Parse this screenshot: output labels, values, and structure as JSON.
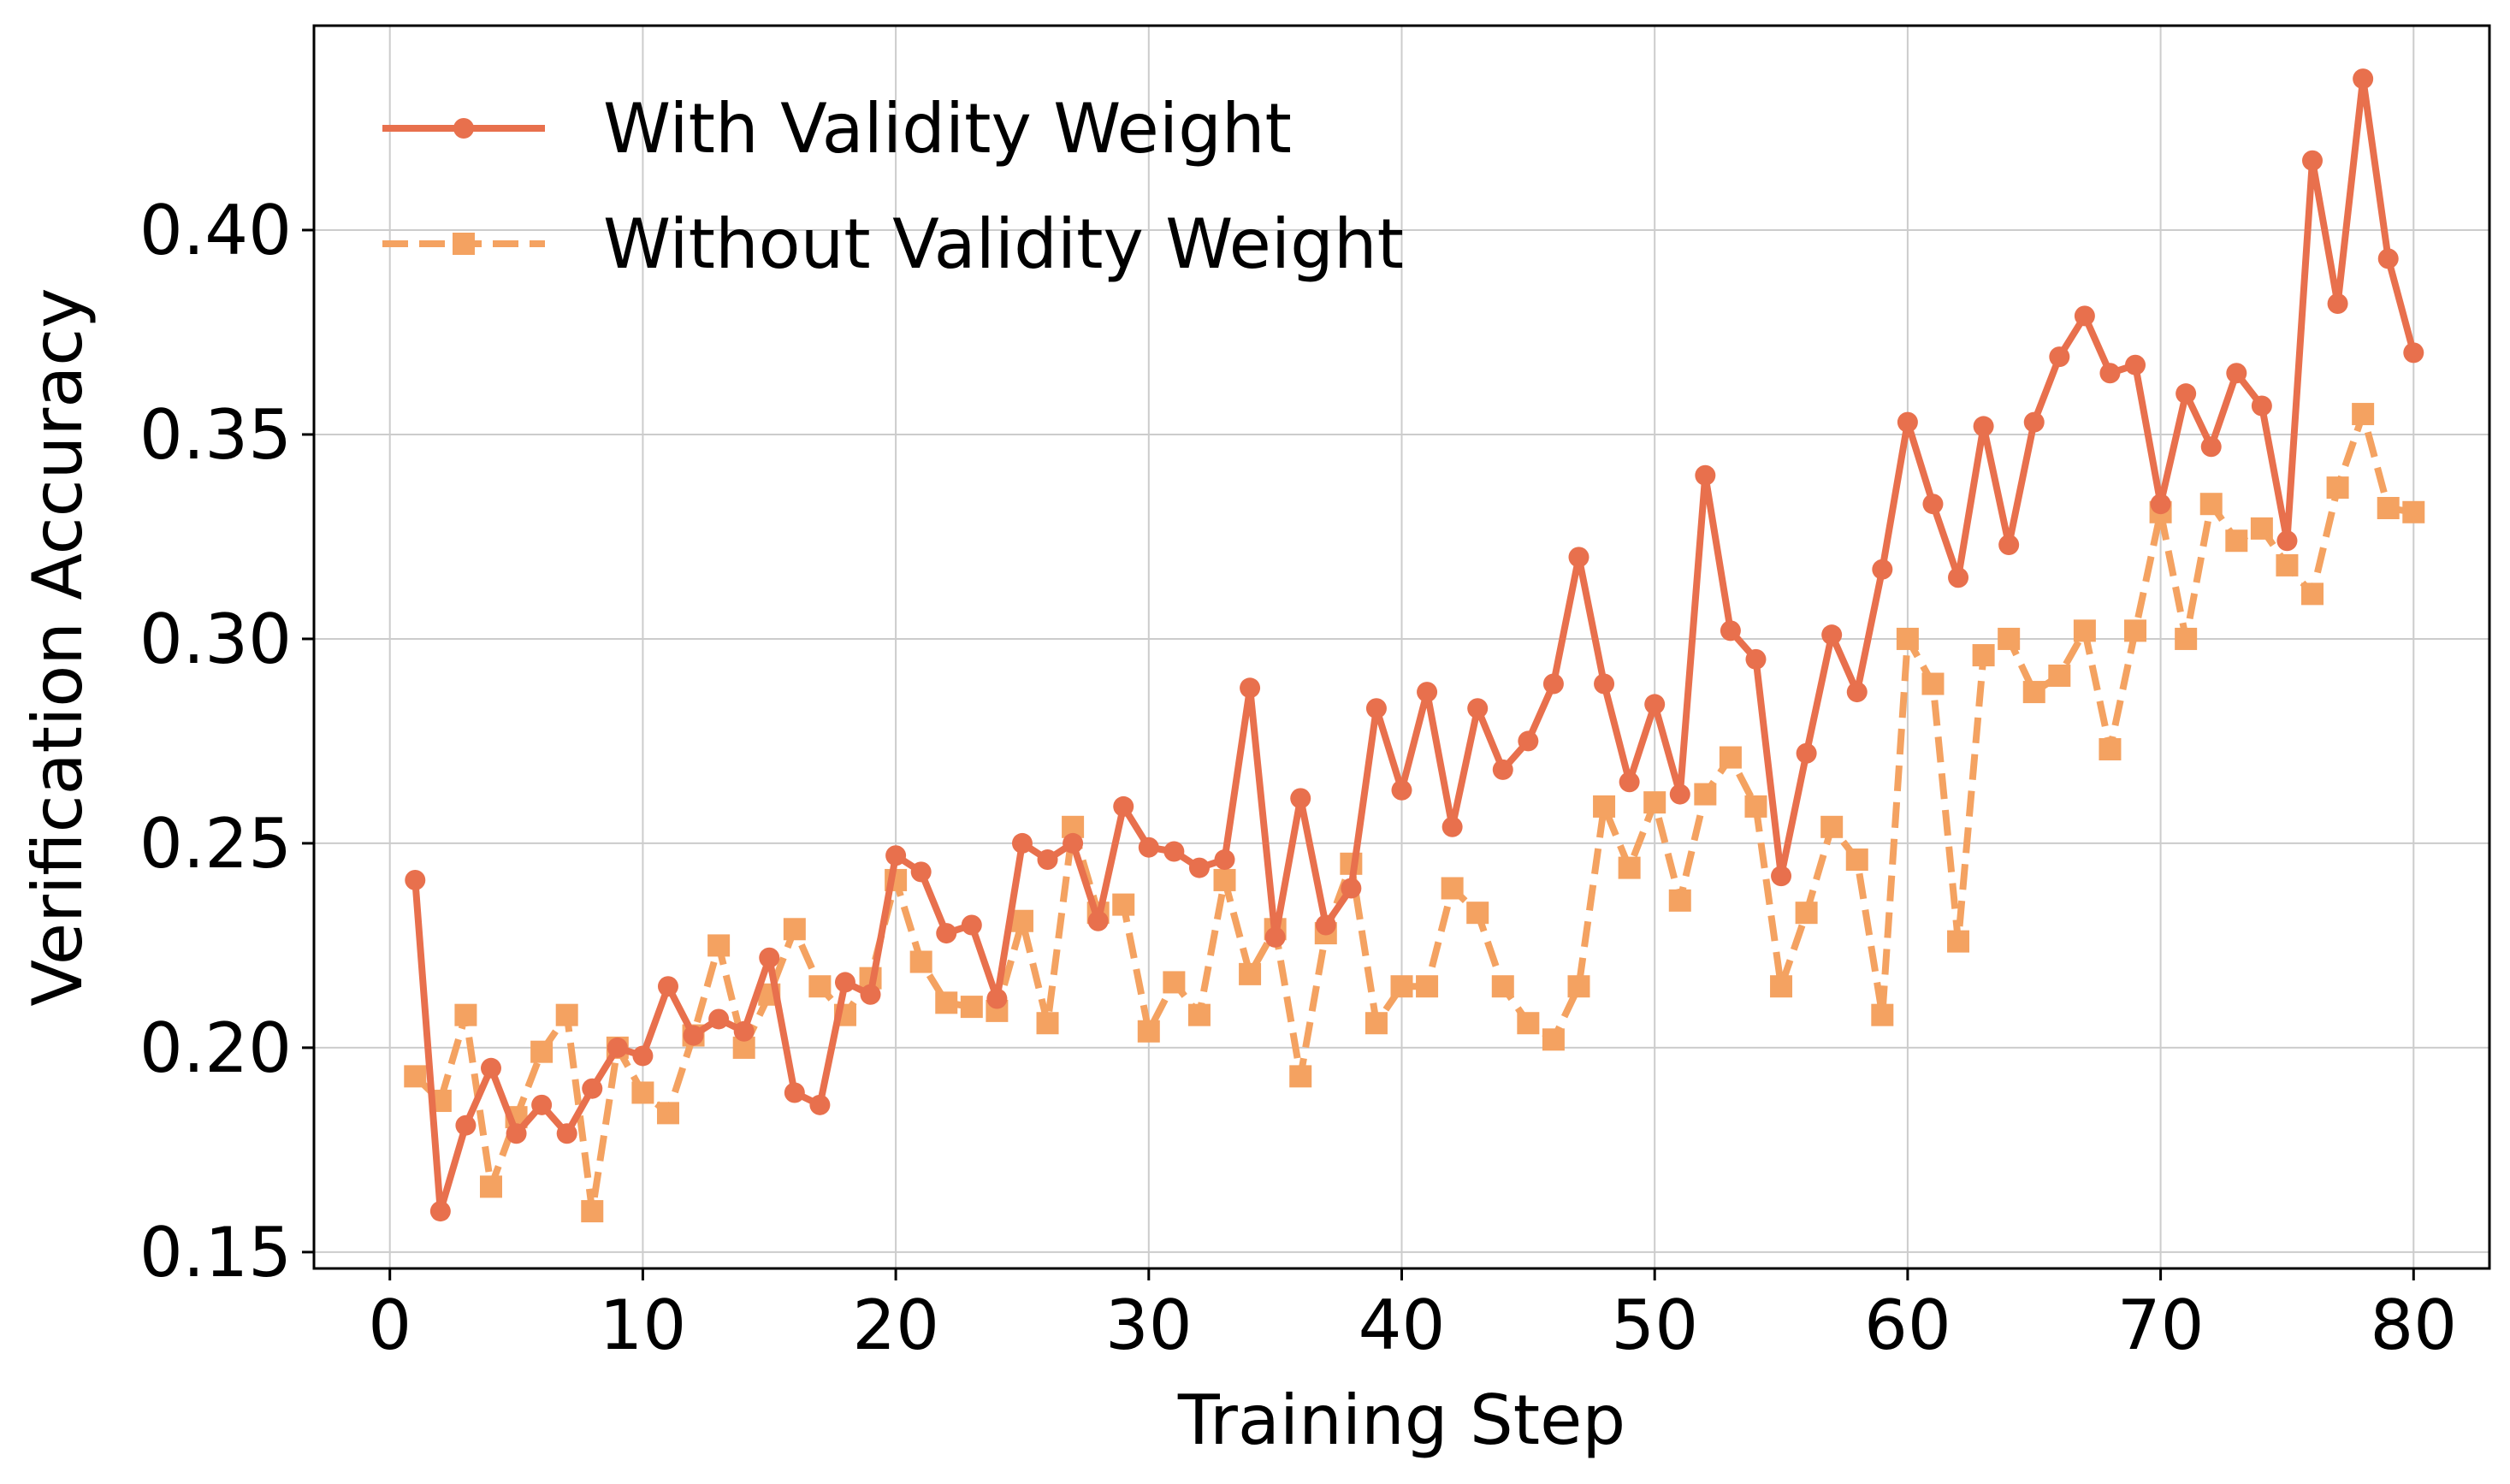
{
  "chart_data": {
    "type": "line",
    "title": "",
    "xlabel": "Training Step",
    "ylabel": "Verification Accuracy",
    "xlim": [
      -3,
      83
    ],
    "ylim": [
      0.146,
      0.45
    ],
    "xticks": [
      0,
      10,
      20,
      30,
      40,
      50,
      60,
      70,
      80
    ],
    "xtick_labels": [
      "0",
      "10",
      "20",
      "30",
      "40",
      "50",
      "60",
      "70",
      "80"
    ],
    "yticks": [
      0.15,
      0.2,
      0.25,
      0.3,
      0.35,
      0.4
    ],
    "ytick_labels": [
      "0.15",
      "0.20",
      "0.25",
      "0.30",
      "0.35",
      "0.40"
    ],
    "grid": true,
    "legend_position": "top-left",
    "x": [
      1,
      2,
      3,
      4,
      5,
      6,
      7,
      8,
      9,
      10,
      11,
      12,
      13,
      14,
      15,
      16,
      17,
      18,
      19,
      20,
      21,
      22,
      23,
      24,
      25,
      26,
      27,
      28,
      29,
      30,
      31,
      32,
      33,
      34,
      35,
      36,
      37,
      38,
      39,
      40,
      41,
      42,
      43,
      44,
      45,
      46,
      47,
      48,
      49,
      50,
      51,
      52,
      53,
      54,
      55,
      56,
      57,
      58,
      59,
      60,
      61,
      62,
      63,
      64,
      65,
      66,
      67,
      68,
      69,
      70,
      71,
      72,
      73,
      74,
      75,
      76,
      77,
      78,
      79,
      80
    ],
    "series": [
      {
        "name": "With Validity Weight",
        "color": "#e8704d",
        "line_style": "solid",
        "marker": "circle",
        "values": [
          0.241,
          0.16,
          0.181,
          0.195,
          0.179,
          0.186,
          0.179,
          0.19,
          0.2,
          0.198,
          0.215,
          0.203,
          0.207,
          0.204,
          0.222,
          0.189,
          0.186,
          0.216,
          0.213,
          0.247,
          0.243,
          0.228,
          0.23,
          0.212,
          0.25,
          0.246,
          0.25,
          0.231,
          0.259,
          0.249,
          0.248,
          0.244,
          0.246,
          0.288,
          0.227,
          0.261,
          0.23,
          0.239,
          0.283,
          0.263,
          0.287,
          0.254,
          0.283,
          0.268,
          0.275,
          0.289,
          0.32,
          0.289,
          0.265,
          0.284,
          0.262,
          0.34,
          0.302,
          0.295,
          0.242,
          0.272,
          0.301,
          0.287,
          0.317,
          0.353,
          0.333,
          0.315,
          0.352,
          0.323,
          0.353,
          0.369,
          0.379,
          0.365,
          0.367,
          0.333,
          0.36,
          0.347,
          0.365,
          0.357,
          0.324,
          0.417,
          0.382,
          0.437,
          0.393,
          0.37
        ]
      },
      {
        "name": "Without Validity Weight",
        "color": "#f4a261",
        "line_style": "dashed",
        "marker": "square",
        "values": [
          0.193,
          0.187,
          0.208,
          0.166,
          0.183,
          0.199,
          0.208,
          0.16,
          0.2,
          0.189,
          0.184,
          0.203,
          0.225,
          0.2,
          0.213,
          0.229,
          0.215,
          0.208,
          0.217,
          0.241,
          0.221,
          0.211,
          0.21,
          0.209,
          0.231,
          0.206,
          0.254,
          0.233,
          0.235,
          0.204,
          0.216,
          0.208,
          0.241,
          0.218,
          0.229,
          0.193,
          0.228,
          0.245,
          0.206,
          0.215,
          0.215,
          0.239,
          0.233,
          0.215,
          0.206,
          0.202,
          0.215,
          0.259,
          0.244,
          0.26,
          0.236,
          0.262,
          0.271,
          0.259,
          0.215,
          0.233,
          0.254,
          0.246,
          0.208,
          0.3,
          0.289,
          0.226,
          0.296,
          0.3,
          0.287,
          0.291,
          0.302,
          0.273,
          0.302,
          0.331,
          0.3,
          0.333,
          0.324,
          0.327,
          0.318,
          0.311,
          0.337,
          0.355,
          0.332,
          0.331
        ]
      }
    ]
  }
}
